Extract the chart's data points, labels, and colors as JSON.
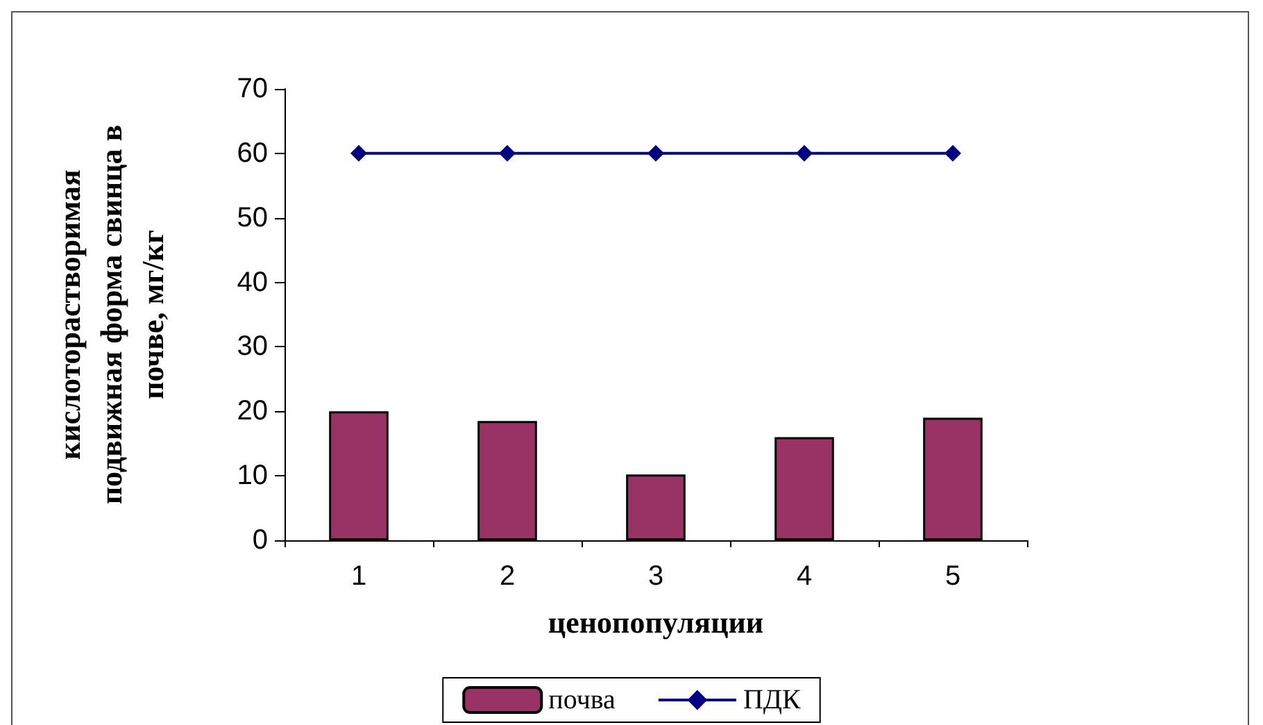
{
  "chart_data": {
    "type": "bar",
    "xlabel": "ценопопуляции",
    "ylabel": "кислоторастворимая\nподвижная форма свинца в\nпочве, мг/кг",
    "categories": [
      "1",
      "2",
      "3",
      "4",
      "5"
    ],
    "series": [
      {
        "name": "почва",
        "color": "#993366",
        "values": [
          20,
          18.5,
          10.2,
          16,
          19
        ]
      },
      {
        "name": "ПДК",
        "type": "line",
        "color": "#000080",
        "marker": "diamond",
        "values": [
          60,
          60,
          60,
          60,
          60
        ]
      }
    ],
    "ylim": [
      0,
      70
    ],
    "yticks": [
      0,
      10,
      20,
      30,
      40,
      50,
      60,
      70
    ],
    "grid": false,
    "legend": "bottom"
  }
}
